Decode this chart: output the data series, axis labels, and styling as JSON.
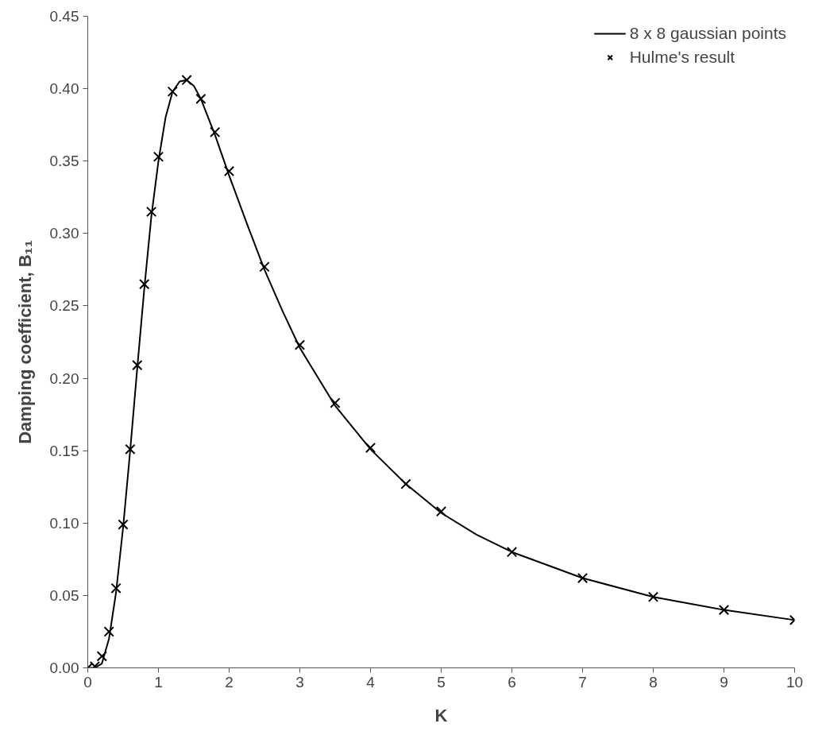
{
  "chart_data": {
    "type": "line",
    "xlabel": "K",
    "ylabel": "Damping coefficient, B₁₁",
    "xlim": [
      0,
      10
    ],
    "xticks": [
      0,
      1,
      2,
      3,
      4,
      5,
      6,
      7,
      8,
      9,
      10
    ],
    "ylim": [
      0,
      0.45
    ],
    "yticks": [
      {
        "value": 0,
        "label": "0.00"
      },
      0.05,
      {
        "value": 0.1,
        "label": "0.10"
      },
      0.15,
      {
        "value": 0.2,
        "label": "0.20"
      },
      0.25,
      {
        "value": 0.3,
        "label": "0.30"
      },
      0.35,
      {
        "value": 0.4,
        "label": "0.40"
      },
      0.45
    ],
    "grid": false,
    "legend": "top right",
    "series": [
      {
        "name": "8 x 8 gaussian points",
        "color": "#000000",
        "marker": "none",
        "line_style": "solid",
        "x": [
          0,
          0.1,
          0.2,
          0.3,
          0.4,
          0.5,
          0.6,
          0.7,
          0.8,
          0.9,
          1.0,
          1.1,
          1.2,
          1.3,
          1.4,
          1.5,
          1.6,
          1.8,
          2.0,
          2.25,
          2.5,
          2.75,
          3.0,
          3.5,
          4,
          4.5,
          5,
          5.5,
          6,
          7,
          8,
          9,
          10
        ],
        "values": [
          0,
          0.0,
          0.003,
          0.02,
          0.052,
          0.097,
          0.15,
          0.207,
          0.262,
          0.312,
          0.35,
          0.38,
          0.398,
          0.405,
          0.406,
          0.402,
          0.393,
          0.368,
          0.34,
          0.307,
          0.275,
          0.247,
          0.221,
          0.181,
          0.151,
          0.127,
          0.107,
          0.092,
          0.08,
          0.062,
          0.049,
          0.04,
          0.033
        ]
      },
      {
        "name": "Hulme's result",
        "type": "scatter",
        "color": "#000000",
        "marker": "cross",
        "x": [
          0,
          0.1,
          0.2,
          0.3,
          0.4,
          0.5,
          0.6,
          0.7,
          0.8,
          0.9,
          1.0,
          1.2,
          1.4,
          1.6,
          1.8,
          2.0,
          2.5,
          3.0,
          3.5,
          4.0,
          4.5,
          5,
          6,
          7,
          8,
          9,
          10
        ],
        "values": [
          0,
          0.001,
          0.008,
          0.025,
          0.055,
          0.099,
          0.151,
          0.209,
          0.265,
          0.315,
          0.353,
          0.398,
          0.406,
          0.393,
          0.37,
          0.343,
          0.277,
          0.223,
          0.183,
          0.152,
          0.127,
          0.108,
          0.08,
          0.062,
          0.049,
          0.04,
          0.033
        ]
      }
    ]
  }
}
